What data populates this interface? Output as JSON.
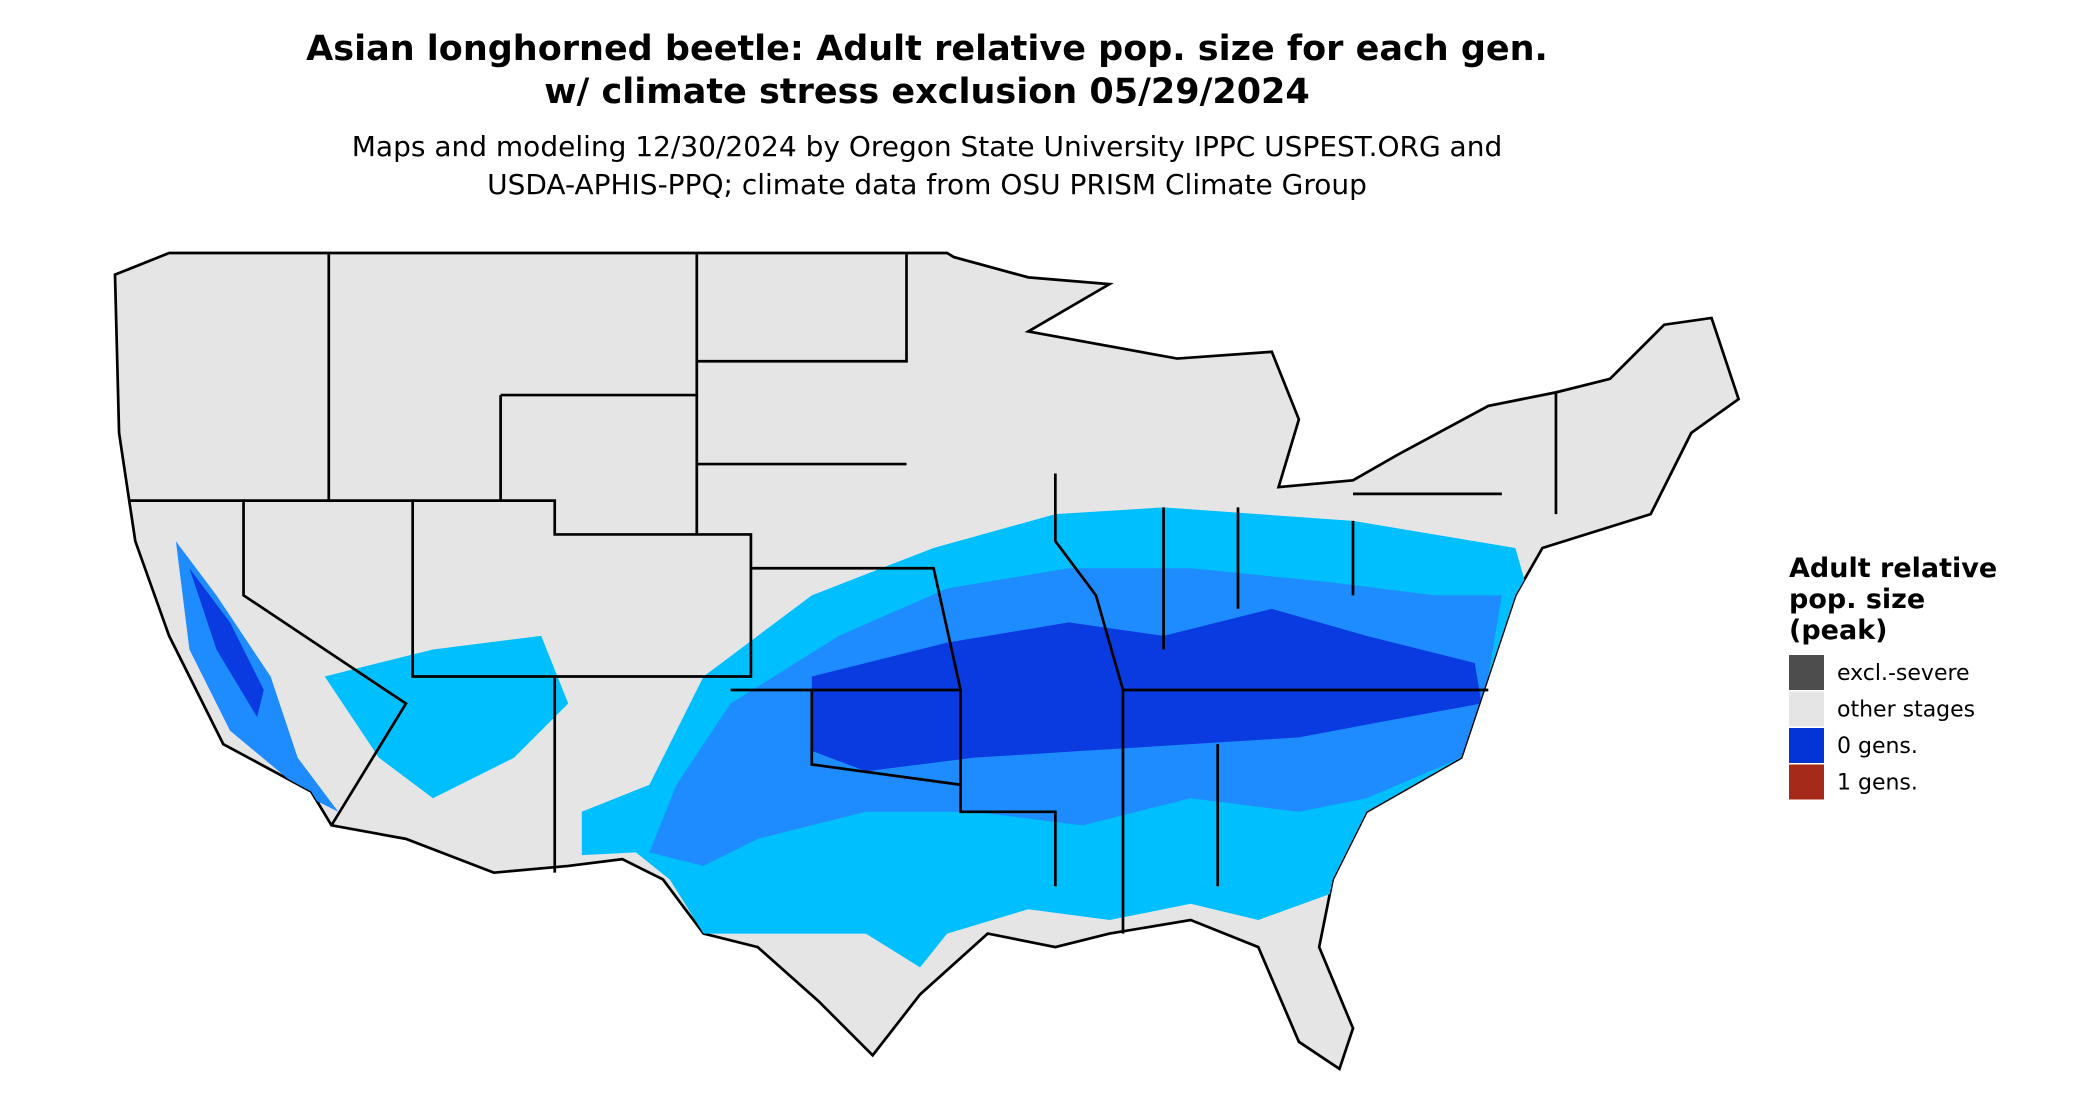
{
  "title": [
    "Asian longhorned beetle: Adult relative pop. size for each gen.",
    "w/ climate stress exclusion 05/29/2024"
  ],
  "subtitle": [
    "Maps and modeling 12/30/2024 by Oregon State University IPPC USPEST.ORG and",
    "USDA-APHIS-PPQ; climate data from OSU PRISM Climate Group"
  ],
  "legend": {
    "title": [
      "Adult relative",
      "pop. size",
      "(peak)"
    ],
    "items": [
      {
        "label": "excl.-severe",
        "color": "#4d4d4d"
      },
      {
        "label": "other stages",
        "color": "#e5e5e5"
      },
      {
        "label": "0 gens.",
        "color": "#0433d6"
      },
      {
        "label": "1 gens.",
        "color": "#a52a1a"
      }
    ]
  }
}
